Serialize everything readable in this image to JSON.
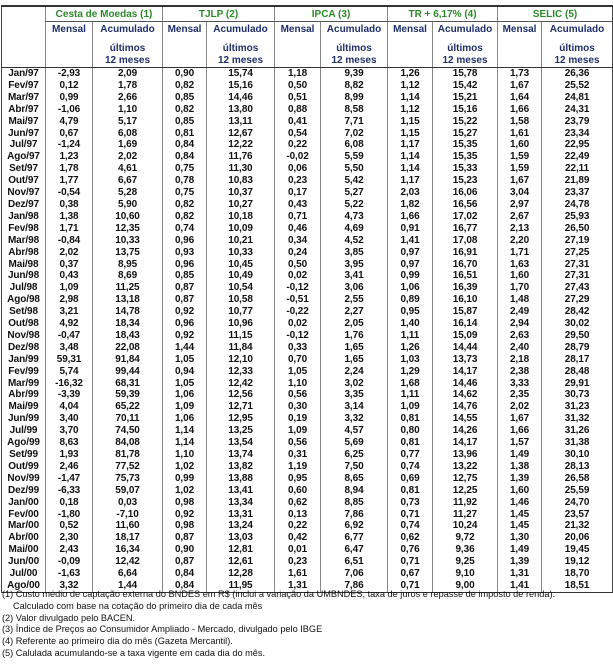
{
  "header": {
    "groups": [
      "Cesta de Moedas (1)",
      "TJLP (2)",
      "IPCA (3)",
      "TR + 6,17% (4)",
      "SELIC  (5)"
    ],
    "mensal": "Mensal",
    "acumulado": "Acumulado",
    "ultimos": "últimos 12 meses"
  },
  "colors": {
    "group_header": "#2a8a2a",
    "sub_header": "#1f2f6a"
  },
  "rows": [
    [
      "Jan/97",
      "-2,93",
      "2,09",
      "0,90",
      "15,74",
      "1,18",
      "9,39",
      "1,26",
      "15,78",
      "1,73",
      "26,36"
    ],
    [
      "Fev/97",
      "0,12",
      "1,78",
      "0,82",
      "15,16",
      "0,50",
      "8,82",
      "1,12",
      "15,42",
      "1,67",
      "25,52"
    ],
    [
      "Mar/97",
      "0,99",
      "2,66",
      "0,85",
      "14,46",
      "0,51",
      "8,99",
      "1,14",
      "15,21",
      "1,64",
      "24,81"
    ],
    [
      "Abr/97",
      "-1,06",
      "1,10",
      "0,82",
      "13,80",
      "0,88",
      "8,58",
      "1,12",
      "15,16",
      "1,66",
      "24,31"
    ],
    [
      "Mai/97",
      "4,79",
      "5,17",
      "0,85",
      "13,11",
      "0,41",
      "7,71",
      "1,15",
      "15,22",
      "1,58",
      "23,79"
    ],
    [
      "Jun/97",
      "0,67",
      "6,08",
      "0,81",
      "12,67",
      "0,54",
      "7,02",
      "1,15",
      "15,27",
      "1,61",
      "23,34"
    ],
    [
      "Jul/97",
      "-1,24",
      "1,69",
      "0,84",
      "12,22",
      "0,22",
      "6,08",
      "1,17",
      "15,35",
      "1,60",
      "22,95"
    ],
    [
      "Ago/97",
      "1,23",
      "2,02",
      "0,84",
      "11,76",
      "-0,02",
      "5,59",
      "1,14",
      "15,35",
      "1,59",
      "22,49"
    ],
    [
      "Set/97",
      "1,78",
      "4,61",
      "0,75",
      "11,30",
      "0,06",
      "5,50",
      "1,14",
      "15,33",
      "1,59",
      "22,11"
    ],
    [
      "Out/97",
      "1,77",
      "6,67",
      "0,78",
      "10,83",
      "0,23",
      "5,42",
      "1,17",
      "15,23",
      "1,67",
      "21,89"
    ],
    [
      "Nov/97",
      "-0,54",
      "5,28",
      "0,75",
      "10,37",
      "0,17",
      "5,27",
      "2,03",
      "16,06",
      "3,04",
      "23,37"
    ],
    [
      "Dez/97",
      "0,38",
      "5,90",
      "0,82",
      "10,27",
      "0,43",
      "5,22",
      "1,82",
      "16,56",
      "2,97",
      "24,78"
    ],
    [
      "Jan/98",
      "1,38",
      "10,60",
      "0,82",
      "10,18",
      "0,71",
      "4,73",
      "1,66",
      "17,02",
      "2,67",
      "25,93"
    ],
    [
      "Fev/98",
      "1,71",
      "12,35",
      "0,74",
      "10,09",
      "0,46",
      "4,69",
      "0,91",
      "16,77",
      "2,13",
      "26,50"
    ],
    [
      "Mar/98",
      "-0,84",
      "10,33",
      "0,96",
      "10,21",
      "0,34",
      "4,52",
      "1,41",
      "17,08",
      "2,20",
      "27,19"
    ],
    [
      "Abr/98",
      "2,02",
      "13,75",
      "0,93",
      "10,33",
      "0,24",
      "3,85",
      "0,97",
      "16,91",
      "1,71",
      "27,25"
    ],
    [
      "Mai/98",
      "0,37",
      "8,95",
      "0,96",
      "10,45",
      "0,50",
      "3,95",
      "0,97",
      "16,70",
      "1,63",
      "27,31"
    ],
    [
      "Jun/98",
      "0,43",
      "8,69",
      "0,85",
      "10,49",
      "0,02",
      "3,41",
      "0,99",
      "16,51",
      "1,60",
      "27,31"
    ],
    [
      "Jul/98",
      "1,09",
      "11,25",
      "0,87",
      "10,54",
      "-0,12",
      "3,06",
      "1,06",
      "16,39",
      "1,70",
      "27,43"
    ],
    [
      "Ago/98",
      "2,98",
      "13,18",
      "0,87",
      "10,58",
      "-0,51",
      "2,55",
      "0,89",
      "16,10",
      "1,48",
      "27,29"
    ],
    [
      "Set/98",
      "3,21",
      "14,78",
      "0,92",
      "10,77",
      "-0,22",
      "2,27",
      "0,95",
      "15,87",
      "2,49",
      "28,42"
    ],
    [
      "Out/98",
      "4,92",
      "18,34",
      "0,96",
      "10,96",
      "0,02",
      "2,05",
      "1,40",
      "16,14",
      "2,94",
      "30,02"
    ],
    [
      "Nov/98",
      "-0,47",
      "18,43",
      "0,92",
      "11,15",
      "-0,12",
      "1,76",
      "1,11",
      "15,09",
      "2,63",
      "29,50"
    ],
    [
      "Dez/98",
      "3,48",
      "22,08",
      "1,44",
      "11,84",
      "0,33",
      "1,65",
      "1,26",
      "14,44",
      "2,40",
      "28,79"
    ],
    [
      "Jan/99",
      "59,31",
      "91,84",
      "1,05",
      "12,10",
      "0,70",
      "1,65",
      "1,03",
      "13,73",
      "2,18",
      "28,17"
    ],
    [
      "Fev/99",
      "5,74",
      "99,44",
      "0,94",
      "12,33",
      "1,05",
      "2,24",
      "1,29",
      "14,17",
      "2,38",
      "28,48"
    ],
    [
      "Mar/99",
      "-16,32",
      "68,31",
      "1,05",
      "12,42",
      "1,10",
      "3,02",
      "1,68",
      "14,46",
      "3,33",
      "29,91"
    ],
    [
      "Abr/99",
      "-3,39",
      "59,39",
      "1,06",
      "12,56",
      "0,56",
      "3,35",
      "1,11",
      "14,62",
      "2,35",
      "30,73"
    ],
    [
      "Mai/99",
      "4,04",
      "65,22",
      "1,09",
      "12,71",
      "0,30",
      "3,14",
      "1,09",
      "14,76",
      "2,02",
      "31,23"
    ],
    [
      "Jun/99",
      "3,40",
      "70,11",
      "1,06",
      "12,95",
      "0,19",
      "3,32",
      "0,81",
      "14,55",
      "1,67",
      "31,32"
    ],
    [
      "Jul/99",
      "3,70",
      "74,50",
      "1,14",
      "13,25",
      "1,09",
      "4,57",
      "0,80",
      "14,26",
      "1,66",
      "31,26"
    ],
    [
      "Ago/99",
      "8,63",
      "84,08",
      "1,14",
      "13,54",
      "0,56",
      "5,69",
      "0,81",
      "14,17",
      "1,57",
      "31,38"
    ],
    [
      "Set/99",
      "1,93",
      "81,78",
      "1,10",
      "13,74",
      "0,31",
      "6,25",
      "0,77",
      "13,96",
      "1,49",
      "30,10"
    ],
    [
      "Out/99",
      "2,46",
      "77,52",
      "1,02",
      "13,82",
      "1,19",
      "7,50",
      "0,74",
      "13,22",
      "1,38",
      "28,13"
    ],
    [
      "Nov/99",
      "-1,47",
      "75,73",
      "0,99",
      "13,88",
      "0,95",
      "8,65",
      "0,69",
      "12,75",
      "1,39",
      "26,58"
    ],
    [
      "Dez/99",
      "-6,33",
      "59,07",
      "1,02",
      "13,41",
      "0,60",
      "8,94",
      "0,81",
      "12,25",
      "1,60",
      "25,59"
    ],
    [
      "Jan/00",
      "0,18",
      "0,03",
      "0,98",
      "13,34",
      "0,62",
      "8,85",
      "0,73",
      "11,92",
      "1,46",
      "24,70"
    ],
    [
      "Fev/00",
      "-1,80",
      "-7,10",
      "0,92",
      "13,31",
      "0,13",
      "7,86",
      "0,71",
      "11,27",
      "1,45",
      "23,57"
    ],
    [
      "Mar/00",
      "0,52",
      "11,60",
      "0,98",
      "13,24",
      "0,22",
      "6,92",
      "0,74",
      "10,24",
      "1,45",
      "21,32"
    ],
    [
      "Abr/00",
      "2,30",
      "18,17",
      "0,87",
      "13,03",
      "0,42",
      "6,77",
      "0,62",
      "9,72",
      "1,30",
      "20,06"
    ],
    [
      "Mai/00",
      "2,43",
      "16,34",
      "0,90",
      "12,81",
      "0,01",
      "6,47",
      "0,76",
      "9,36",
      "1,49",
      "19,45"
    ],
    [
      "Jun/00",
      "-0,09",
      "12,42",
      "0,87",
      "12,61",
      "0,23",
      "6,51",
      "0,71",
      "9,25",
      "1,39",
      "19,12"
    ],
    [
      "Jul/00",
      "-1,63",
      "6,64",
      "0,84",
      "12,28",
      "1,61",
      "7,06",
      "0,67",
      "9,10",
      "1,31",
      "18,70"
    ],
    [
      "Ago/00",
      "3,32",
      "1,44",
      "0,84",
      "11,95",
      "1,31",
      "7,86",
      "0,71",
      "9,00",
      "1,41",
      "18,51"
    ]
  ],
  "notes": [
    "(1) Custo médio de captação externa do BNDES em R$ (inclui a variação da UMBNDES, taxa de juros e repasse de imposto de renda).",
    "Calculado com base na cotação do primeiro dia de cada mês",
    "(2) Valor divulgado pelo BACEN.",
    "(3) Índice de Preços ao Consumidor Ampliado - Mercado, divulgado pelo IBGE",
    "(4) Referente ao primeiro dia do mês (Gazeta Mercantil).",
    "(5) Calulada acumulando-se a   taxa vigente em cada dia do mês."
  ]
}
